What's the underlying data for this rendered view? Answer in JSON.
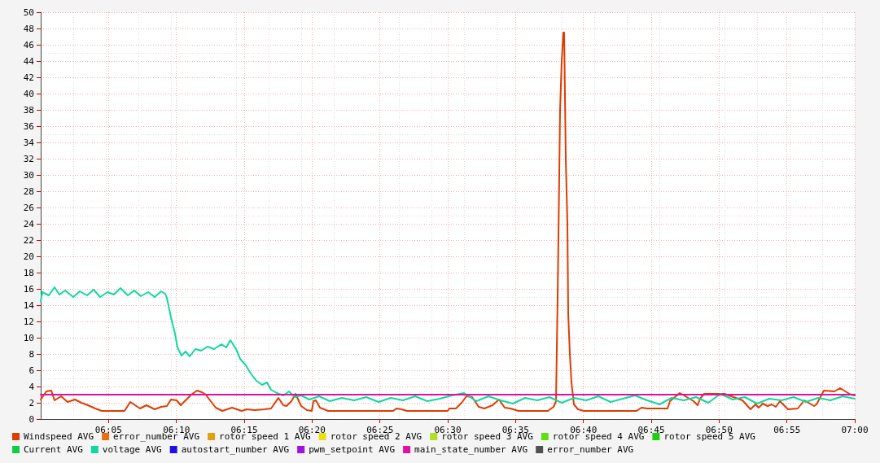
{
  "chart_data": {
    "type": "line",
    "xlim": [
      6,
      7
    ],
    "ylim": [
      0,
      50
    ],
    "xticks": [
      {
        "value": 6.0833,
        "label": "06:05"
      },
      {
        "value": 6.1667,
        "label": "06:10"
      },
      {
        "value": 6.25,
        "label": "06:15"
      },
      {
        "value": 6.3333,
        "label": "06:20"
      },
      {
        "value": 6.4167,
        "label": "06:25"
      },
      {
        "value": 6.5,
        "label": "06:30"
      },
      {
        "value": 6.5833,
        "label": "06:35"
      },
      {
        "value": 6.6667,
        "label": "06:40"
      },
      {
        "value": 6.75,
        "label": "06:45"
      },
      {
        "value": 6.8333,
        "label": "06:50"
      },
      {
        "value": 6.9167,
        "label": "06:55"
      },
      {
        "value": 7,
        "label": "07:00"
      }
    ],
    "yticks": [
      0,
      2,
      4,
      6,
      8,
      10,
      12,
      14,
      16,
      18,
      20,
      22,
      24,
      26,
      28,
      30,
      32,
      34,
      36,
      38,
      40,
      42,
      44,
      46,
      48,
      50
    ],
    "grid": true,
    "legend": "bottom",
    "marker": "none",
    "line_style": "solid",
    "series": [
      {
        "name": "Windspeed AVG",
        "color": "#e03c00",
        "x": [
          6.0,
          6.007,
          6.013,
          6.017,
          6.025,
          6.033,
          6.042,
          6.05,
          6.058,
          6.067,
          6.075,
          6.103,
          6.11,
          6.122,
          6.13,
          6.14,
          6.148,
          6.155,
          6.16,
          6.167,
          6.172,
          6.177,
          6.185,
          6.192,
          6.198,
          6.203,
          6.205,
          6.215,
          6.223,
          6.235,
          6.247,
          6.253,
          6.263,
          6.275,
          6.283,
          6.292,
          6.298,
          6.302,
          6.308,
          6.313,
          6.32,
          6.327,
          6.333,
          6.335,
          6.338,
          6.343,
          6.353,
          6.433,
          6.437,
          6.443,
          6.45,
          6.5,
          6.502,
          6.51,
          6.517,
          6.523,
          6.53,
          6.538,
          6.545,
          6.555,
          6.563,
          6.57,
          6.577,
          6.587,
          6.623,
          6.63,
          6.633,
          6.635,
          6.637,
          6.638,
          6.64,
          6.642,
          6.643,
          6.645,
          6.647,
          6.648,
          6.65,
          6.652,
          6.655,
          6.66,
          6.667,
          6.732,
          6.738,
          6.745,
          6.77,
          6.773,
          6.785,
          6.792,
          6.802,
          6.807,
          6.81,
          6.815,
          6.84,
          6.862,
          6.872,
          6.878,
          6.882,
          6.887,
          6.893,
          6.898,
          6.903,
          6.908,
          6.912,
          6.918,
          6.93,
          6.938,
          6.95,
          6.953,
          6.962,
          6.975,
          6.982,
          6.995,
          7.0
        ],
        "values": [
          2.4,
          3.4,
          3.5,
          2.3,
          2.8,
          2.1,
          2.4,
          2.0,
          1.7,
          1.3,
          1.0,
          1.0,
          2.1,
          1.3,
          1.7,
          1.2,
          1.5,
          1.6,
          2.4,
          2.3,
          1.7,
          2.2,
          3.0,
          3.5,
          3.3,
          3.0,
          2.7,
          1.4,
          1.0,
          1.4,
          1.0,
          1.2,
          1.1,
          1.2,
          1.3,
          2.6,
          1.7,
          1.6,
          2.2,
          3.1,
          1.6,
          1.1,
          1.0,
          2.2,
          2.3,
          1.4,
          1.0,
          1.0,
          1.3,
          1.2,
          1.0,
          1.0,
          1.3,
          1.3,
          2.0,
          2.8,
          2.7,
          1.5,
          1.3,
          1.7,
          2.4,
          1.4,
          1.3,
          1.0,
          1.0,
          1.5,
          2.2,
          15,
          30,
          38,
          44,
          47.5,
          47.5,
          32,
          24,
          13,
          8,
          4.5,
          1.8,
          1.2,
          1.0,
          1.0,
          1.4,
          1.3,
          1.3,
          2.2,
          3.2,
          2.8,
          2.2,
          1.7,
          2.5,
          3.1,
          3.1,
          2.3,
          1.2,
          1.8,
          1.4,
          1.9,
          1.6,
          1.8,
          1.5,
          2.2,
          1.8,
          1.2,
          1.3,
          2.3,
          1.6,
          1.8,
          3.5,
          3.4,
          3.8,
          3.0,
          2.9
        ]
      },
      {
        "name": "error_number AVG",
        "color": "#e87010"
      },
      {
        "name": "rotor speed 1 AVG",
        "color": "#e0a010"
      },
      {
        "name": "rotor speed 2 AVG",
        "color": "#e8e010"
      },
      {
        "name": "rotor speed 3 AVG",
        "color": "#b0e020"
      },
      {
        "name": "rotor speed 4 AVG",
        "color": "#60e010"
      },
      {
        "name": "rotor speed 5 AVG",
        "color": "#20d010"
      },
      {
        "name": "Current AVG",
        "color": "#10d040"
      },
      {
        "name": "voltage AVG",
        "color": "#10d8a0",
        "x": [
          6.0,
          6.002,
          6.01,
          6.017,
          6.023,
          6.03,
          6.04,
          6.048,
          6.057,
          6.065,
          6.073,
          6.082,
          6.09,
          6.098,
          6.107,
          6.115,
          6.123,
          6.132,
          6.14,
          6.148,
          6.153,
          6.155,
          6.16,
          6.165,
          6.168,
          6.173,
          6.178,
          6.183,
          6.19,
          6.197,
          6.205,
          6.213,
          6.222,
          6.228,
          6.233,
          6.24,
          6.245,
          6.252,
          6.258,
          6.265,
          6.272,
          6.278,
          6.283,
          6.29,
          6.298,
          6.305,
          6.312,
          6.32,
          6.33,
          6.342,
          6.355,
          6.37,
          6.385,
          6.4,
          6.415,
          6.43,
          6.445,
          6.46,
          6.475,
          6.49,
          6.505,
          6.52,
          6.535,
          6.55,
          6.565,
          6.58,
          6.595,
          6.61,
          6.625,
          6.64,
          6.655,
          6.67,
          6.685,
          6.7,
          6.715,
          6.73,
          6.745,
          6.76,
          6.775,
          6.79,
          6.805,
          6.82,
          6.835,
          6.85,
          6.865,
          6.88,
          6.895,
          6.91,
          6.925,
          6.94,
          6.955,
          6.97,
          6.985,
          7.0
        ],
        "values": [
          14.5,
          15.6,
          15.2,
          16.2,
          15.3,
          15.8,
          15.0,
          15.7,
          15.2,
          15.9,
          15.0,
          15.6,
          15.3,
          16.1,
          15.2,
          15.8,
          15.1,
          15.6,
          15.0,
          15.7,
          15.4,
          14.9,
          12.5,
          10.5,
          8.8,
          7.8,
          8.3,
          7.7,
          8.6,
          8.4,
          8.9,
          8.6,
          9.2,
          8.8,
          9.7,
          8.6,
          7.4,
          6.6,
          5.6,
          4.7,
          4.2,
          4.5,
          3.6,
          3.2,
          2.9,
          3.4,
          2.7,
          2.9,
          2.4,
          2.8,
          2.2,
          2.6,
          2.3,
          2.7,
          2.1,
          2.6,
          2.3,
          2.8,
          2.2,
          2.5,
          2.9,
          3.2,
          2.2,
          2.8,
          2.3,
          1.9,
          2.6,
          2.3,
          2.7,
          2.0,
          2.6,
          2.3,
          2.8,
          2.1,
          2.5,
          2.9,
          2.3,
          1.8,
          2.6,
          2.3,
          2.7,
          2.0,
          3.1,
          2.4,
          2.7,
          1.9,
          2.5,
          2.3,
          2.7,
          2.1,
          2.6,
          2.3,
          2.8,
          2.5
        ]
      },
      {
        "name": "autostart_number AVG",
        "color": "#2010e0"
      },
      {
        "name": "pwm_setpoint AVG",
        "color": "#a010e0"
      },
      {
        "name": "main_state_number AVG",
        "color": "#e010a0",
        "x": [
          6,
          7
        ],
        "values": [
          3,
          3
        ]
      },
      {
        "name": "error_number AVG",
        "color": "#505050"
      }
    ]
  }
}
